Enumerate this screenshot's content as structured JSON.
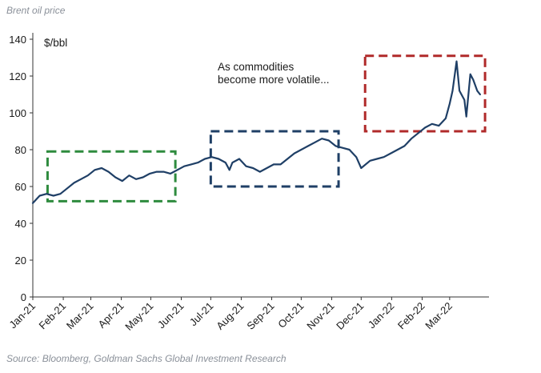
{
  "title": "Brent oil price",
  "source": "Source: Bloomberg, Goldman Sachs Global Investment Research",
  "chart_data": {
    "type": "line",
    "unit_label": "$/bbl",
    "ylim": [
      0,
      140
    ],
    "yticks": [
      0,
      20,
      40,
      60,
      80,
      100,
      120,
      140
    ],
    "xlim": [
      "2021-01-01",
      "2022-04-10"
    ],
    "xticks": [
      {
        "date": "2021-01-01",
        "label": "Jan-21"
      },
      {
        "date": "2021-02-01",
        "label": "Feb-21"
      },
      {
        "date": "2021-03-01",
        "label": "Mar-21"
      },
      {
        "date": "2021-04-01",
        "label": "Apr-21"
      },
      {
        "date": "2021-05-01",
        "label": "May-21"
      },
      {
        "date": "2021-06-01",
        "label": "Jun-21"
      },
      {
        "date": "2021-07-01",
        "label": "Jul-21"
      },
      {
        "date": "2021-08-01",
        "label": "Aug-21"
      },
      {
        "date": "2021-09-01",
        "label": "Sep-21"
      },
      {
        "date": "2021-10-01",
        "label": "Oct-21"
      },
      {
        "date": "2021-11-01",
        "label": "Nov-21"
      },
      {
        "date": "2021-12-01",
        "label": "Dec-21"
      },
      {
        "date": "2022-01-01",
        "label": "Jan-22"
      },
      {
        "date": "2022-02-01",
        "label": "Feb-22"
      },
      {
        "date": "2022-03-01",
        "label": "Mar-22"
      }
    ],
    "line_color": "#1f3f66",
    "series": [
      {
        "x": [
          "2021-01-01",
          "2021-01-08",
          "2021-01-15",
          "2021-01-22",
          "2021-01-29",
          "2021-02-05",
          "2021-02-12",
          "2021-02-19",
          "2021-02-26",
          "2021-03-05",
          "2021-03-12",
          "2021-03-19",
          "2021-03-26",
          "2021-04-02",
          "2021-04-09",
          "2021-04-16",
          "2021-04-23",
          "2021-04-30",
          "2021-05-07",
          "2021-05-14",
          "2021-05-21",
          "2021-05-28",
          "2021-06-04",
          "2021-06-11",
          "2021-06-18",
          "2021-06-25",
          "2021-07-02",
          "2021-07-09",
          "2021-07-16",
          "2021-07-20",
          "2021-07-23",
          "2021-07-30",
          "2021-08-06",
          "2021-08-13",
          "2021-08-20",
          "2021-08-27",
          "2021-09-03",
          "2021-09-10",
          "2021-09-17",
          "2021-09-24",
          "2021-10-01",
          "2021-10-08",
          "2021-10-15",
          "2021-10-22",
          "2021-10-29",
          "2021-11-05",
          "2021-11-12",
          "2021-11-19",
          "2021-11-26",
          "2021-12-01",
          "2021-12-10",
          "2021-12-17",
          "2021-12-24",
          "2021-12-31",
          "2022-01-07",
          "2022-01-14",
          "2022-01-21",
          "2022-01-28",
          "2022-02-04",
          "2022-02-11",
          "2022-02-18",
          "2022-02-25",
          "2022-03-01",
          "2022-03-04",
          "2022-03-08",
          "2022-03-11",
          "2022-03-16",
          "2022-03-18",
          "2022-03-22",
          "2022-03-25",
          "2022-03-29",
          "2022-04-01"
        ],
        "y": [
          51,
          55,
          56,
          55,
          56,
          59,
          62,
          64,
          66,
          69,
          70,
          68,
          65,
          63,
          66,
          64,
          65,
          67,
          68,
          68,
          67,
          69,
          71,
          72,
          73,
          75,
          76,
          75,
          73,
          69,
          73,
          75,
          71,
          70,
          68,
          70,
          72,
          72,
          75,
          78,
          80,
          82,
          84,
          86,
          85,
          82,
          81,
          80,
          76,
          70,
          74,
          75,
          76,
          78,
          80,
          82,
          86,
          89,
          92,
          94,
          93,
          97,
          105,
          112,
          128,
          112,
          107,
          98,
          121,
          118,
          112,
          110
        ]
      }
    ],
    "annotations": [
      {
        "kind": "box",
        "label": "",
        "color": "#2e8b3e",
        "x0": "2021-01-16",
        "x1": "2021-05-26",
        "y0": 52,
        "y1": 79
      },
      {
        "kind": "box",
        "label": "",
        "color": "#1f3f66",
        "x0": "2021-07-01",
        "x1": "2021-11-08",
        "y0": 60,
        "y1": 90
      },
      {
        "kind": "box",
        "label": "",
        "color": "#b02a2a",
        "x0": "2021-12-05",
        "x1": "2022-04-06",
        "y0": 90,
        "y1": 131
      },
      {
        "kind": "text",
        "lines": [
          "As commodities",
          "become more volatile..."
        ]
      }
    ]
  }
}
